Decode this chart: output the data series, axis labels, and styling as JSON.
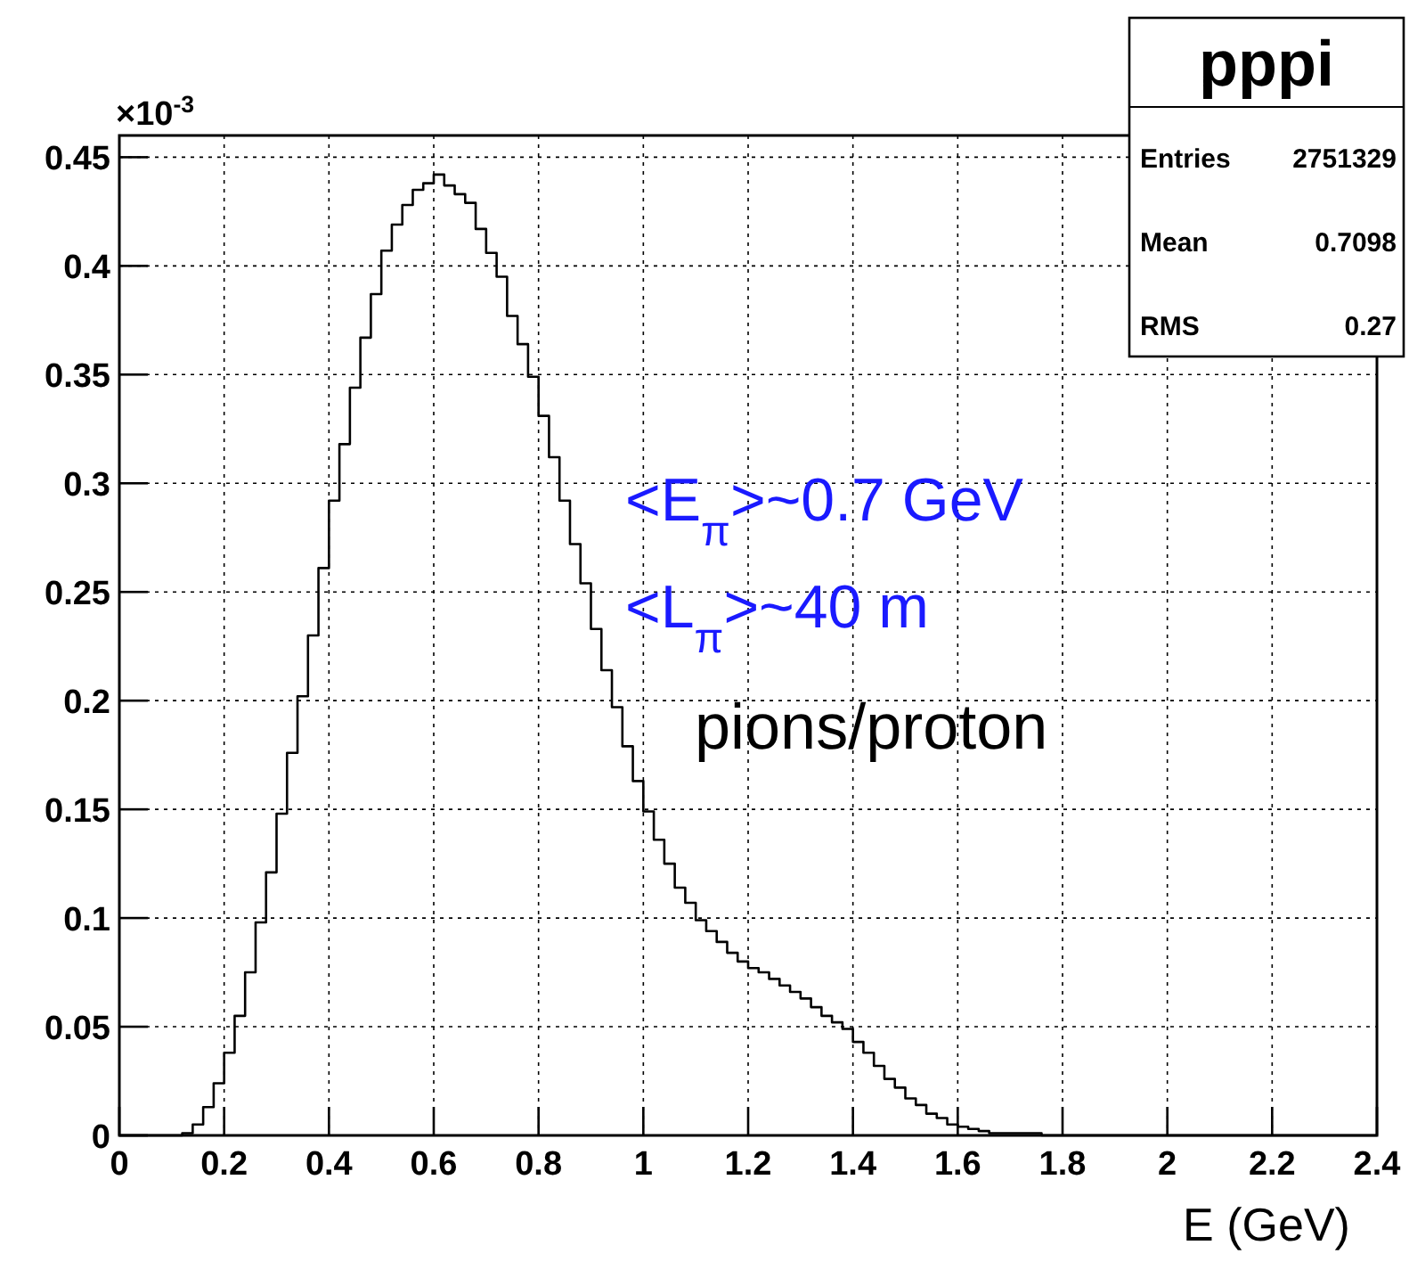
{
  "chart_data": {
    "type": "histogram",
    "title": "pppi",
    "xlabel": "E (GeV)",
    "bins": [
      0,
      0.02,
      0.04,
      0.06,
      0.08,
      0.1,
      0.12,
      0.14,
      0.16,
      0.18,
      0.2,
      0.22,
      0.24,
      0.26,
      0.28,
      0.3,
      0.32,
      0.34,
      0.36,
      0.38,
      0.4,
      0.42,
      0.44,
      0.46,
      0.48,
      0.5,
      0.52,
      0.54,
      0.56,
      0.58,
      0.6,
      0.62,
      0.64,
      0.66,
      0.68,
      0.7,
      0.72,
      0.74,
      0.76,
      0.78,
      0.8,
      0.82,
      0.84,
      0.86,
      0.88,
      0.9,
      0.92,
      0.94,
      0.96,
      0.98,
      1,
      1.02,
      1.04,
      1.06,
      1.08,
      1.1,
      1.12,
      1.14,
      1.16,
      1.18,
      1.2,
      1.22,
      1.24,
      1.26,
      1.28,
      1.3,
      1.32,
      1.34,
      1.36,
      1.38,
      1.4,
      1.42,
      1.44,
      1.46,
      1.48,
      1.5,
      1.52,
      1.54,
      1.56,
      1.58,
      1.6,
      1.62,
      1.64,
      1.66,
      1.68,
      1.7,
      1.72,
      1.74,
      1.76,
      1.78,
      1.8,
      1.82,
      1.84,
      1.86,
      1.88,
      1.9,
      1.92,
      1.94,
      1.96,
      1.98,
      2,
      2.02,
      2.04,
      2.06,
      2.08,
      2.1,
      2.12,
      2.14,
      2.16,
      2.18,
      2.2,
      2.22,
      2.24,
      2.26,
      2.28,
      2.3,
      2.32,
      2.34,
      2.36,
      2.38,
      2.4
    ],
    "values": [
      0,
      0,
      0,
      0,
      0,
      0,
      0.001,
      0.005,
      0.013,
      0.024,
      0.038,
      0.055,
      0.075,
      0.098,
      0.121,
      0.148,
      0.176,
      0.202,
      0.23,
      0.261,
      0.292,
      0.318,
      0.344,
      0.367,
      0.387,
      0.407,
      0.419,
      0.428,
      0.435,
      0.438,
      0.442,
      0.437,
      0.433,
      0.429,
      0.417,
      0.406,
      0.395,
      0.377,
      0.364,
      0.349,
      0.331,
      0.312,
      0.292,
      0.272,
      0.254,
      0.233,
      0.214,
      0.197,
      0.179,
      0.163,
      0.149,
      0.136,
      0.125,
      0.114,
      0.107,
      0.099,
      0.094,
      0.089,
      0.084,
      0.08,
      0.077,
      0.075,
      0.072,
      0.069,
      0.066,
      0.063,
      0.059,
      0.055,
      0.052,
      0.049,
      0.043,
      0.038,
      0.032,
      0.026,
      0.022,
      0.017,
      0.014,
      0.01,
      0.008,
      0.005,
      0.004,
      0.003,
      0.002,
      0.001,
      0.001,
      0.001,
      0.001,
      0.001,
      0,
      0,
      0,
      0,
      0,
      0,
      0,
      0,
      0,
      0,
      0,
      0,
      0,
      0,
      0,
      0,
      0,
      0,
      0,
      0,
      0,
      0,
      0,
      0,
      0,
      0,
      0,
      0,
      0,
      0,
      0,
      0
    ],
    "color": "#000000",
    "xlim": [
      0,
      2.4
    ],
    "xticks": [
      0,
      0.2,
      0.4,
      0.6,
      0.8,
      1,
      1.2,
      1.4,
      1.6,
      1.8,
      2,
      2.2,
      2.4
    ],
    "ylim": [
      0,
      0.46
    ],
    "yticks": [
      0,
      0.05,
      0.1,
      0.15,
      0.2,
      0.25,
      0.3,
      0.35,
      0.4,
      0.45
    ],
    "grid": true,
    "annotations": [
      "Entries 2751329",
      "Mean 0.7098",
      "RMS 0.27",
      "×10$^{-3}$",
      "<E$_{π}$>~0.7 GeV",
      "<L$_{π}$>~40 m",
      "pions/proton"
    ]
  }
}
